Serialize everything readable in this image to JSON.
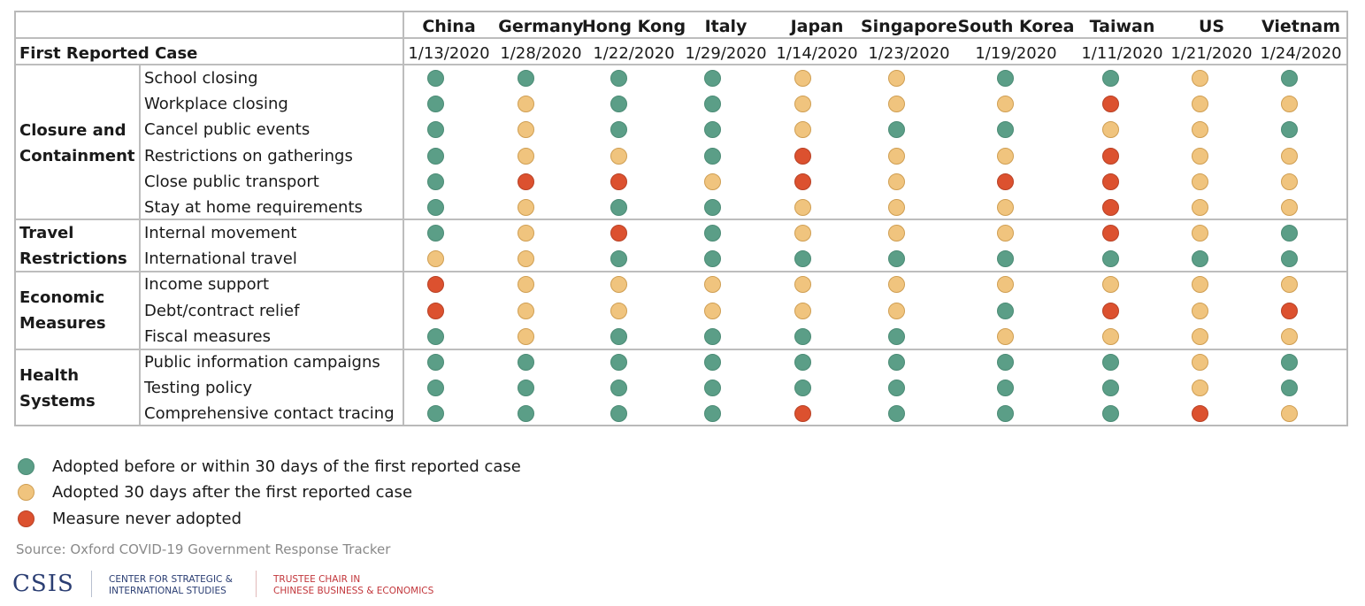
{
  "chart_data": {
    "type": "table",
    "corner_label": "First Reported Case",
    "countries": [
      "China",
      "Germany",
      "Hong Kong",
      "Italy",
      "Japan",
      "Singapore",
      "South Korea",
      "Taiwan",
      "US",
      "Vietnam"
    ],
    "first_reported_case": [
      "1/13/2020",
      "1/28/2020",
      "1/22/2020",
      "1/29/2020",
      "1/14/2020",
      "1/23/2020",
      "1/19/2020",
      "1/11/2020",
      "1/21/2020",
      "1/24/2020"
    ],
    "status_colors": {
      "G": "#5b9e87",
      "Y": "#f0c47e",
      "R": "#dc512f"
    },
    "status_borders": {
      "G": "#4b8b75",
      "Y": "#cf9e52",
      "R": "#b84125"
    },
    "groups": [
      {
        "category": "Closure and Containment",
        "measures": [
          {
            "name": "School closing",
            "status": [
              "G",
              "G",
              "G",
              "G",
              "Y",
              "Y",
              "G",
              "G",
              "Y",
              "G"
            ]
          },
          {
            "name": "Workplace closing",
            "status": [
              "G",
              "Y",
              "G",
              "G",
              "Y",
              "Y",
              "Y",
              "R",
              "Y",
              "Y"
            ]
          },
          {
            "name": "Cancel public events",
            "status": [
              "G",
              "Y",
              "G",
              "G",
              "Y",
              "G",
              "G",
              "Y",
              "Y",
              "G"
            ]
          },
          {
            "name": "Restrictions on gatherings",
            "status": [
              "G",
              "Y",
              "Y",
              "G",
              "R",
              "Y",
              "Y",
              "R",
              "Y",
              "Y"
            ]
          },
          {
            "name": "Close public transport",
            "status": [
              "G",
              "R",
              "R",
              "Y",
              "R",
              "Y",
              "R",
              "R",
              "Y",
              "Y"
            ]
          },
          {
            "name": "Stay at home requirements",
            "status": [
              "G",
              "Y",
              "G",
              "G",
              "Y",
              "Y",
              "Y",
              "R",
              "Y",
              "Y"
            ]
          }
        ]
      },
      {
        "category": "Travel Restrictions",
        "measures": [
          {
            "name": "Internal movement",
            "status": [
              "G",
              "Y",
              "R",
              "G",
              "Y",
              "Y",
              "Y",
              "R",
              "Y",
              "G"
            ]
          },
          {
            "name": "International travel",
            "status": [
              "Y",
              "Y",
              "G",
              "G",
              "G",
              "G",
              "G",
              "G",
              "G",
              "G"
            ]
          }
        ]
      },
      {
        "category": "Economic Measures",
        "measures": [
          {
            "name": "Income support",
            "status": [
              "R",
              "Y",
              "Y",
              "Y",
              "Y",
              "Y",
              "Y",
              "Y",
              "Y",
              "Y"
            ]
          },
          {
            "name": "Debt/contract relief",
            "status": [
              "R",
              "Y",
              "Y",
              "Y",
              "Y",
              "Y",
              "G",
              "R",
              "Y",
              "R"
            ]
          },
          {
            "name": "Fiscal measures",
            "status": [
              "G",
              "Y",
              "G",
              "G",
              "G",
              "G",
              "Y",
              "Y",
              "Y",
              "Y"
            ]
          }
        ]
      },
      {
        "category": "Health Systems",
        "measures": [
          {
            "name": "Public information campaigns",
            "status": [
              "G",
              "G",
              "G",
              "G",
              "G",
              "G",
              "G",
              "G",
              "Y",
              "G"
            ]
          },
          {
            "name": "Testing policy",
            "status": [
              "G",
              "G",
              "G",
              "G",
              "G",
              "G",
              "G",
              "G",
              "Y",
              "G"
            ]
          },
          {
            "name": "Comprehensive contact tracing",
            "status": [
              "G",
              "G",
              "G",
              "G",
              "R",
              "G",
              "G",
              "G",
              "R",
              "Y"
            ]
          }
        ]
      }
    ],
    "legend": [
      {
        "key": "G",
        "label": "Adopted before or within 30 days of the first reported case"
      },
      {
        "key": "Y",
        "label": "Adopted 30 days after the first reported case"
      },
      {
        "key": "R",
        "label": "Measure never adopted"
      }
    ]
  },
  "source": "Source: Oxford COVID-19 Government Response Tracker",
  "logo": {
    "name": "CSIS",
    "subtitle_line1": "CENTER FOR STRATEGIC &",
    "subtitle_line2": "INTERNATIONAL STUDIES",
    "chair_line1": "TRUSTEE CHAIR IN",
    "chair_line2": "CHINESE BUSINESS & ECONOMICS"
  }
}
